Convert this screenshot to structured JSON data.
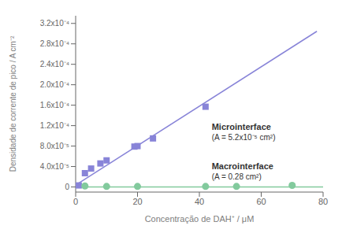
{
  "chart_data": {
    "type": "scatter",
    "xlabel": "Concentração de DAH⁺ / μM",
    "ylabel": "Densidade de corrente de pico / A cm⁻²",
    "series": [
      {
        "type": "line",
        "color": "#8884d8",
        "x": [
          0,
          78
        ],
        "values": [
          3.5e-06,
          0.00030458
        ]
      },
      {
        "type": "line",
        "color": "#82ca9d",
        "x": [
          0,
          80
        ],
        "values": [
          0.0,
          0.0
        ]
      },
      {
        "type": "scatter",
        "marker": "square",
        "color": "#8884d8",
        "x": [
          1,
          3,
          5,
          8,
          10,
          19,
          20,
          25,
          42
        ],
        "values": [
          3e-06,
          2.7e-05,
          3.6e-05,
          4.6e-05,
          5.2e-05,
          7.9e-05,
          8e-05,
          9.5e-05,
          0.000157
        ]
      },
      {
        "type": "scatter",
        "marker": "circle",
        "color": "#82ca9d",
        "x": [
          3,
          10,
          20,
          42,
          52,
          70
        ],
        "values": [
          2e-06,
          1e-06,
          1e-06,
          1e-06,
          1e-06,
          3e-06
        ]
      }
    ],
    "annotations": [
      {
        "text": "Microinterface",
        "subtext": "(A = 5.2x10⁻⁵ cm²)",
        "x": 44,
        "y": 0.000108
      },
      {
        "text": "Macrointerface",
        "subtext": "(A = 0.28 cm²)",
        "x": 44,
        "y": 3.2e-05
      }
    ],
    "xlim": [
      0,
      80
    ],
    "xticks": [
      0,
      20,
      40,
      60,
      80
    ],
    "ylim": [
      -1e-05,
      0.000335
    ],
    "yticks": [
      0,
      {
        "value": 4e-05,
        "label": "4.0x10⁻⁵"
      },
      {
        "value": 8e-05,
        "label": "8.0x10⁻⁵"
      },
      {
        "value": 0.00012,
        "label": "1.2x10⁻⁴"
      },
      {
        "value": 0.00016,
        "label": "1.6x10⁻⁴"
      },
      {
        "value": 0.0002,
        "label": "2.0x10⁻⁴"
      },
      {
        "value": 0.00024,
        "label": "2.4x10⁻⁴"
      },
      {
        "value": 0.00028,
        "label": "2.8x10⁻⁴"
      },
      {
        "value": 0.00032,
        "label": "3.2x10⁻⁴"
      }
    ],
    "grid": false
  }
}
